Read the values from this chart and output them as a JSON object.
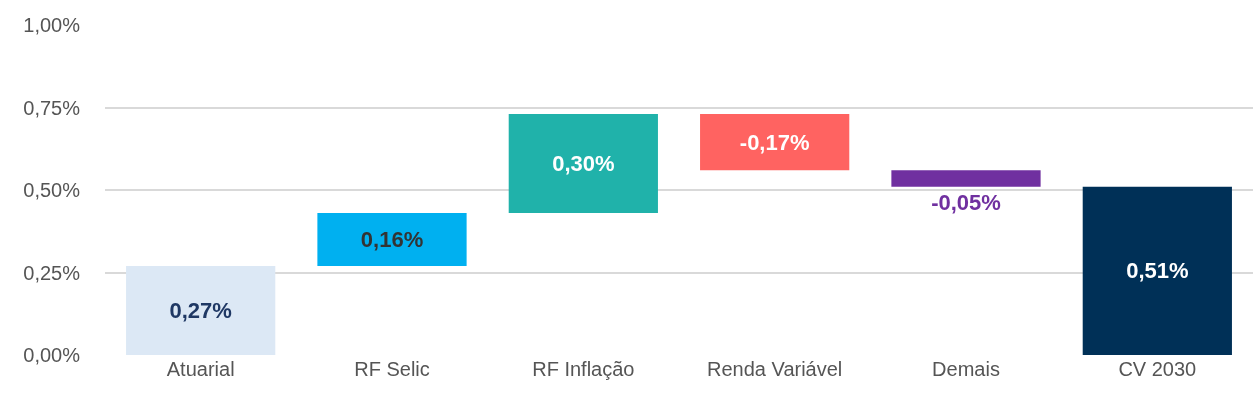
{
  "chart_data": {
    "type": "bar",
    "categories": [
      "Atuarial",
      "RF Selic",
      "RF Inflação",
      "Renda Variável",
      "Demais",
      "CV 2030"
    ],
    "values": [
      0.27,
      0.16,
      0.3,
      -0.17,
      -0.05,
      0.51
    ],
    "base": [
      0,
      0.27,
      0.43,
      0.73,
      0.56,
      0
    ],
    "colors": [
      "#dce8f5",
      "#00b0f0",
      "#20b2aa",
      "#ff6361",
      "#7030a0",
      "#003057"
    ],
    "value_labels": [
      "0,27%",
      "0,16%",
      "0,30%",
      "-0,17%",
      "-0,05%",
      "0,51%"
    ],
    "ylim": [
      0,
      1
    ],
    "yticks": [
      {
        "value": 0,
        "label": "0,00%"
      },
      {
        "value": 0.25,
        "label": "0,25%"
      },
      {
        "value": 0.5,
        "label": "0,50%"
      },
      {
        "value": 0.75,
        "label": "0,75%"
      },
      {
        "value": 1,
        "label": "1,00%"
      }
    ],
    "grid": "y"
  }
}
